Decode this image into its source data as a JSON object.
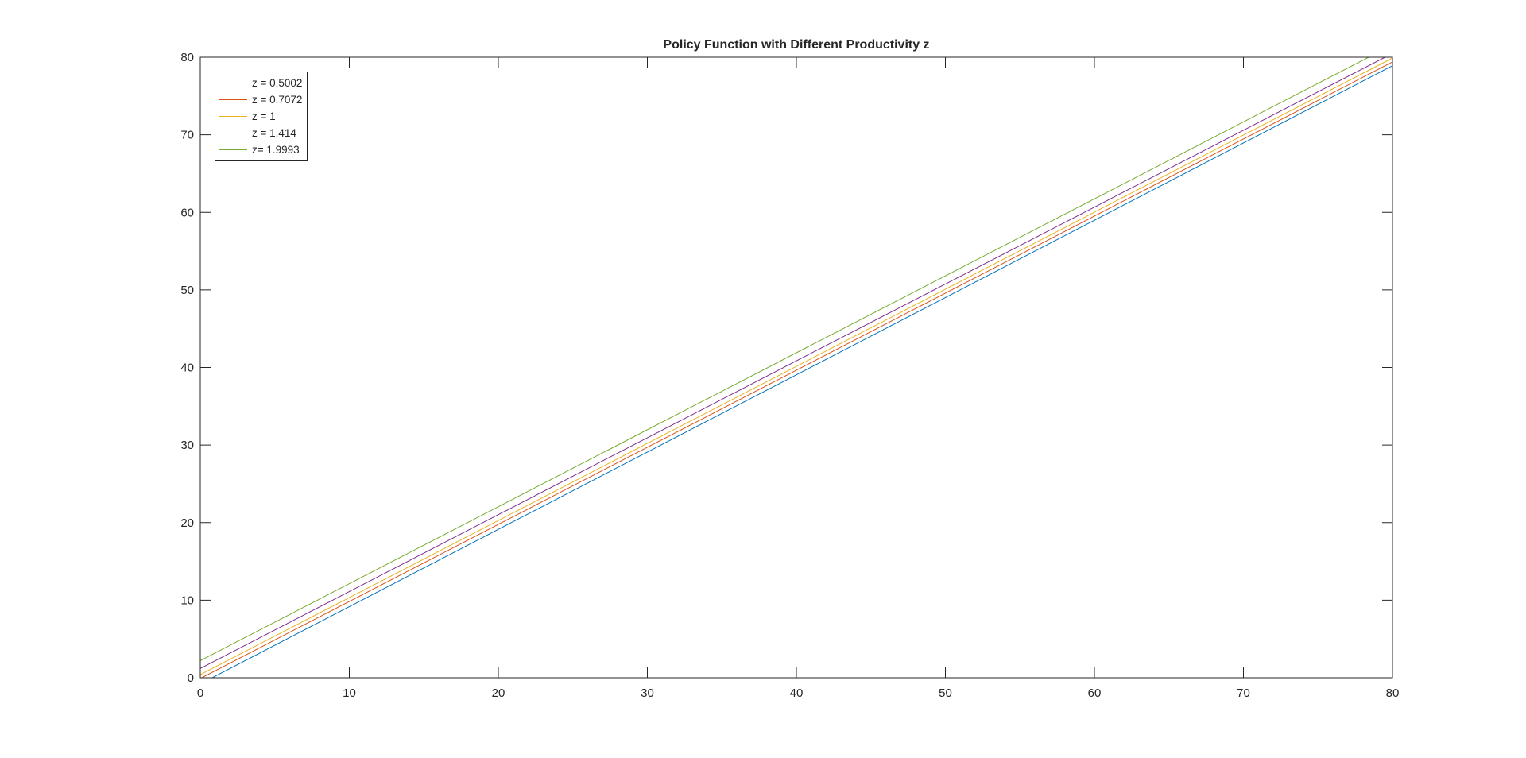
{
  "chart_data": {
    "type": "line",
    "title": "Policy Function with Different Productivity z",
    "xlabel": "",
    "ylabel": "",
    "xlim": [
      0,
      80
    ],
    "ylim": [
      0,
      80
    ],
    "xticks": [
      0,
      10,
      20,
      30,
      40,
      50,
      60,
      70,
      80
    ],
    "yticks": [
      0,
      10,
      20,
      30,
      40,
      50,
      60,
      70,
      80
    ],
    "grid": false,
    "legend_position": "top-left",
    "x": [
      0,
      80
    ],
    "series": [
      {
        "name": "z = 0.5002",
        "color": "#0072BD",
        "points": [
          [
            0.8,
            0
          ],
          [
            80,
            78.9
          ]
        ]
      },
      {
        "name": "z = 0.7072",
        "color": "#D95319",
        "points": [
          [
            0.1,
            0
          ],
          [
            80,
            79.4
          ]
        ]
      },
      {
        "name": "z = 1",
        "color": "#EDB120",
        "points": [
          [
            0,
            0.4
          ],
          [
            80,
            79.9
          ]
        ]
      },
      {
        "name": "z = 1.414",
        "color": "#7E2F8E",
        "points": [
          [
            0,
            1.2
          ],
          [
            79.5,
            80
          ]
        ]
      },
      {
        "name": "z= 1.9993",
        "color": "#77AC30",
        "points": [
          [
            0,
            2.2
          ],
          [
            78.4,
            80
          ]
        ]
      }
    ]
  }
}
